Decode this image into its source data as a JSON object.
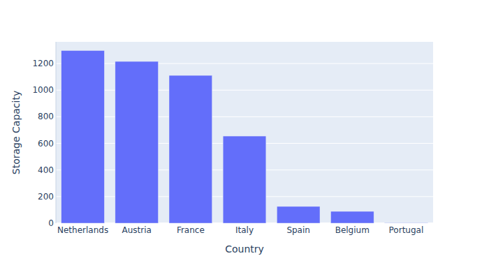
{
  "chart_data": {
    "type": "bar",
    "x_label": "Country",
    "y_label": "Storage Capacity",
    "categories": [
      "Netherlands",
      "Austria",
      "France",
      "Italy",
      "Spain",
      "Belgium",
      "Portugal"
    ],
    "values": [
      1298,
      1216,
      1111,
      655,
      126,
      89,
      3
    ],
    "color": "#636efa",
    "ylim": [
      0,
      1363
    ],
    "yticks": [
      0,
      200,
      400,
      600,
      800,
      1000,
      1200
    ],
    "grid": true
  }
}
